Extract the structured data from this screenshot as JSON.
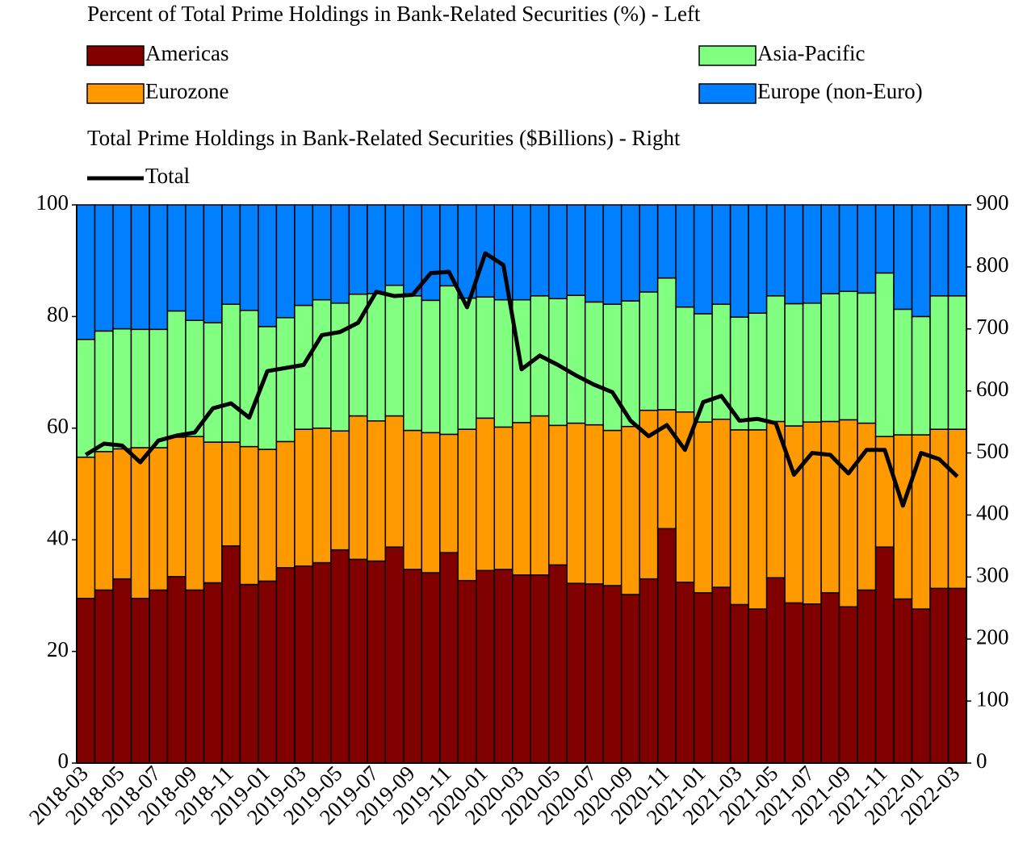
{
  "chart_data": {
    "type": "bar",
    "stacked": true,
    "title": "Percent of Total Prime Holdings in Bank-Related Securities (%) - Left",
    "y2_title": "Total Prime Holdings in Bank-Related Securities ($Billions) - Right",
    "categories": [
      "2018-03",
      null,
      "2018-05",
      null,
      "2018-07",
      null,
      "2018-09",
      null,
      "2018-11",
      null,
      "2019-01",
      null,
      "2019-03",
      null,
      "2019-05",
      null,
      "2019-07",
      null,
      "2019-09",
      null,
      "2019-11",
      null,
      "2020-01",
      null,
      "2020-03",
      null,
      "2020-05",
      null,
      "2020-07",
      null,
      "2020-09",
      null,
      "2020-11",
      null,
      "2021-01",
      null,
      "2021-03",
      null,
      "2021-05",
      null,
      "2021-07",
      null,
      "2021-09",
      null,
      "2021-11",
      null,
      "2022-01",
      null,
      "2022-03"
    ],
    "series": [
      {
        "name": "Americas",
        "color": "#800000",
        "values": [
          29.5,
          31,
          33,
          29.5,
          31,
          33.4,
          31,
          32.3,
          38.9,
          32,
          32.6,
          35,
          35.3,
          35.9,
          38.2,
          36.5,
          36.2,
          38.7,
          34.7,
          34.1,
          37.7,
          32.7,
          34.5,
          34.7,
          33.7,
          33.7,
          35.5,
          32.2,
          32.1,
          31.8,
          30.2,
          33,
          42,
          32.4,
          30.5,
          31.5,
          28.4,
          27.6,
          33.2,
          28.7,
          28.5,
          30.5,
          28,
          31,
          38.7,
          29.4,
          27.6,
          31.3,
          31.3
        ]
      },
      {
        "name": "Eurozone",
        "color": "#ff9900",
        "values": [
          25.3,
          24.8,
          23.3,
          27,
          25.5,
          25,
          27.5,
          25.2,
          18.6,
          24.7,
          23.6,
          22.6,
          24.5,
          24.1,
          21.3,
          25.7,
          25.1,
          23.5,
          24.9,
          25.1,
          21.2,
          27.1,
          27.3,
          25.5,
          27.3,
          28.5,
          25,
          28.7,
          28.5,
          27.8,
          30.1,
          30.2,
          21.3,
          30.5,
          30.6,
          30.1,
          31.3,
          32.1,
          28,
          31.7,
          32.6,
          30.7,
          33.5,
          29.9,
          19.8,
          29.4,
          31.2,
          28.5,
          28.5
        ]
      },
      {
        "name": "Asia-Pacific",
        "color": "#80ff80",
        "values": [
          21.1,
          21.6,
          21.5,
          21.2,
          21.2,
          22.6,
          20.8,
          21.4,
          24.7,
          24.4,
          22,
          22.2,
          22.2,
          23,
          22.9,
          21.8,
          22.8,
          23.4,
          24.1,
          23.7,
          26.6,
          23.5,
          21.7,
          22.8,
          22,
          21.5,
          22.7,
          22.9,
          22,
          22.6,
          22.5,
          21.2,
          23.6,
          18.8,
          19.4,
          20.6,
          20.2,
          20.9,
          22.5,
          21.9,
          21.3,
          22.9,
          23,
          23.3,
          29.3,
          22.5,
          21.2,
          23.9,
          23.9
        ]
      },
      {
        "name": "Europe (non-Euro)",
        "color": "#0080ff",
        "values": [
          24.1,
          22.6,
          22.2,
          22.3,
          22.3,
          19,
          20.7,
          21.1,
          17.8,
          18.9,
          21.8,
          20.2,
          18,
          17,
          17.6,
          16,
          15.9,
          14.4,
          16.3,
          17.1,
          14.5,
          16.7,
          16.5,
          17,
          17,
          16.3,
          16.8,
          16.2,
          17.4,
          17.8,
          17.2,
          15.6,
          13.1,
          18.3,
          19.5,
          17.8,
          20.1,
          19.4,
          16.3,
          17.7,
          17.6,
          15.9,
          15.5,
          15.8,
          12.2,
          18.7,
          20,
          16.3,
          16.3
        ]
      },
      {
        "name": "Total",
        "type": "line",
        "axis": "y2",
        "color": "#000000",
        "values": [
          497,
          515,
          512,
          485,
          520,
          528,
          533,
          572,
          580,
          557,
          632,
          637,
          642,
          690,
          695,
          710,
          760,
          753,
          755,
          790,
          792,
          735,
          822,
          803,
          635,
          657,
          642,
          625,
          610,
          598,
          552,
          527,
          545,
          505,
          582,
          592,
          552,
          555,
          548,
          465,
          500,
          497,
          467,
          505,
          505,
          415,
          500,
          490,
          462
        ]
      }
    ],
    "ylim": [
      0,
      100
    ],
    "yticks": [
      0,
      20,
      40,
      60,
      80,
      100
    ],
    "y2lim": [
      0,
      900
    ],
    "y2ticks": [
      0,
      100,
      200,
      300,
      400,
      500,
      600,
      700,
      800,
      900
    ]
  }
}
